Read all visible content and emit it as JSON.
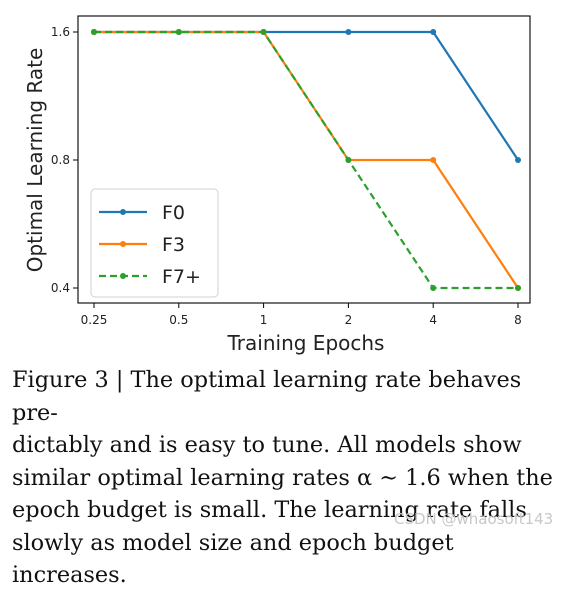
{
  "chart_data": {
    "type": "line",
    "x": [
      0.25,
      0.5,
      1,
      2,
      4,
      8
    ],
    "x_tick_labels": [
      "0.25",
      "0.5",
      "1",
      "2",
      "4",
      "8"
    ],
    "x_scale": "log",
    "y_scale": "log",
    "y_ticks": [
      0.4,
      0.8,
      1.6
    ],
    "y_tick_labels": [
      "0.4",
      "0.8",
      "1.6"
    ],
    "xlabel": "Training Epochs",
    "ylabel": "Optimal Learning Rate",
    "ylim": [
      0.4,
      1.6
    ],
    "grid": false,
    "legend_position": "bottom-left",
    "series": [
      {
        "name": "F0",
        "color": "#1f77b4",
        "style": "solid",
        "values": [
          1.6,
          1.6,
          1.6,
          1.6,
          1.6,
          0.8
        ]
      },
      {
        "name": "F3",
        "color": "#ff7f0e",
        "style": "solid",
        "values": [
          1.6,
          1.6,
          1.6,
          0.8,
          0.8,
          0.4
        ]
      },
      {
        "name": "F7+",
        "color": "#2ca02c",
        "style": "dashed",
        "values": [
          1.6,
          1.6,
          1.6,
          0.8,
          0.4,
          0.4
        ]
      }
    ]
  },
  "caption": "Figure 3 | The optimal learning rate behaves pre-\ndictably and is easy to tune.  All models show\nsimilar optimal learning rates α ∼ 1.6 when the\nepoch budget is small.  The learning rate falls\nslowly as model size and epoch budget increases.",
  "watermark": "CSDN @whaosoft143"
}
